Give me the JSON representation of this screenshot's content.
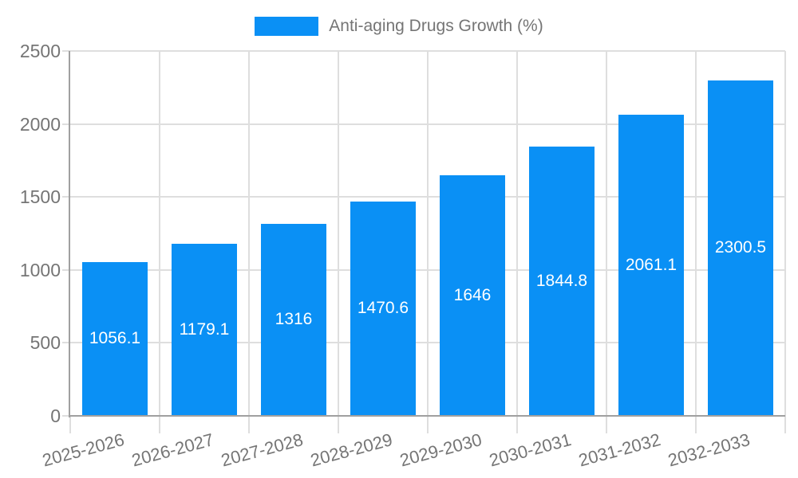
{
  "chart_data": {
    "type": "bar",
    "title": "Anti-aging Drugs Growth (%)",
    "legend": {
      "position": "top",
      "label": "Anti-aging Drugs Growth (%)"
    },
    "categories": [
      "2025-2026",
      "2026-2027",
      "2027-2028",
      "2028-2029",
      "2029-2030",
      "2030-2031",
      "2031-2032",
      "2032-2033"
    ],
    "series": [
      {
        "name": "Anti-aging Drugs Growth (%)",
        "values": [
          1056.1,
          1179.1,
          1316,
          1470.6,
          1646,
          1844.8,
          2061.1,
          2300.5
        ]
      }
    ],
    "value_labels": [
      "1056.1",
      "1179.1",
      "1316",
      "1470.6",
      "1646",
      "1844.8",
      "2061.1",
      "2300.5"
    ],
    "xlabel": "",
    "ylabel": "",
    "ylim": [
      0,
      2500
    ],
    "yticks": [
      0,
      500,
      1000,
      1500,
      2000,
      2500
    ],
    "grid": true,
    "x_tick_label_rotation_deg": -15,
    "value_labels_inside_bars": true,
    "colors": {
      "bar": "#0a90f5",
      "value_label": "#ffffff",
      "axis": "#a0a0a0",
      "grid": "#dedede",
      "text": "#757575",
      "background": "#ffffff"
    }
  }
}
